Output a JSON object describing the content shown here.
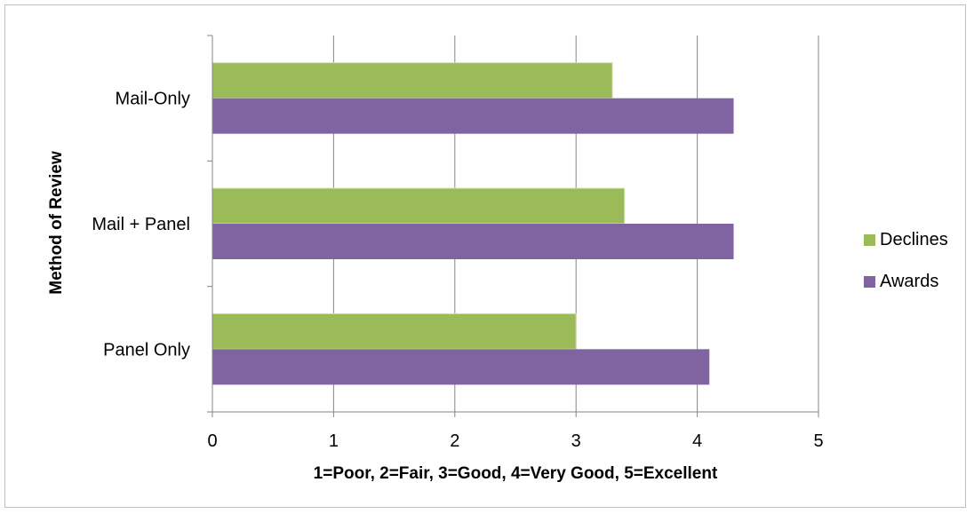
{
  "chart_data": {
    "type": "bar",
    "orientation": "horizontal",
    "categories": [
      "Mail-Only",
      "Mail + Panel",
      "Panel Only"
    ],
    "series": [
      {
        "name": "Declines",
        "values": [
          3.3,
          3.4,
          3.0
        ]
      },
      {
        "name": "Awards",
        "values": [
          4.3,
          4.3,
          4.1
        ]
      }
    ],
    "xlabel": "1=Poor, 2=Fair, 3=Good, 4=Very Good, 5=Excellent",
    "ylabel": "Method of Review",
    "xlim": [
      0,
      5
    ],
    "xticks": [
      "0",
      "1",
      "2",
      "3",
      "4",
      "5"
    ],
    "grid": "vertical",
    "legend_position": "right",
    "colors": {
      "Declines": "#9bbb59",
      "Awards": "#8064a2"
    }
  }
}
